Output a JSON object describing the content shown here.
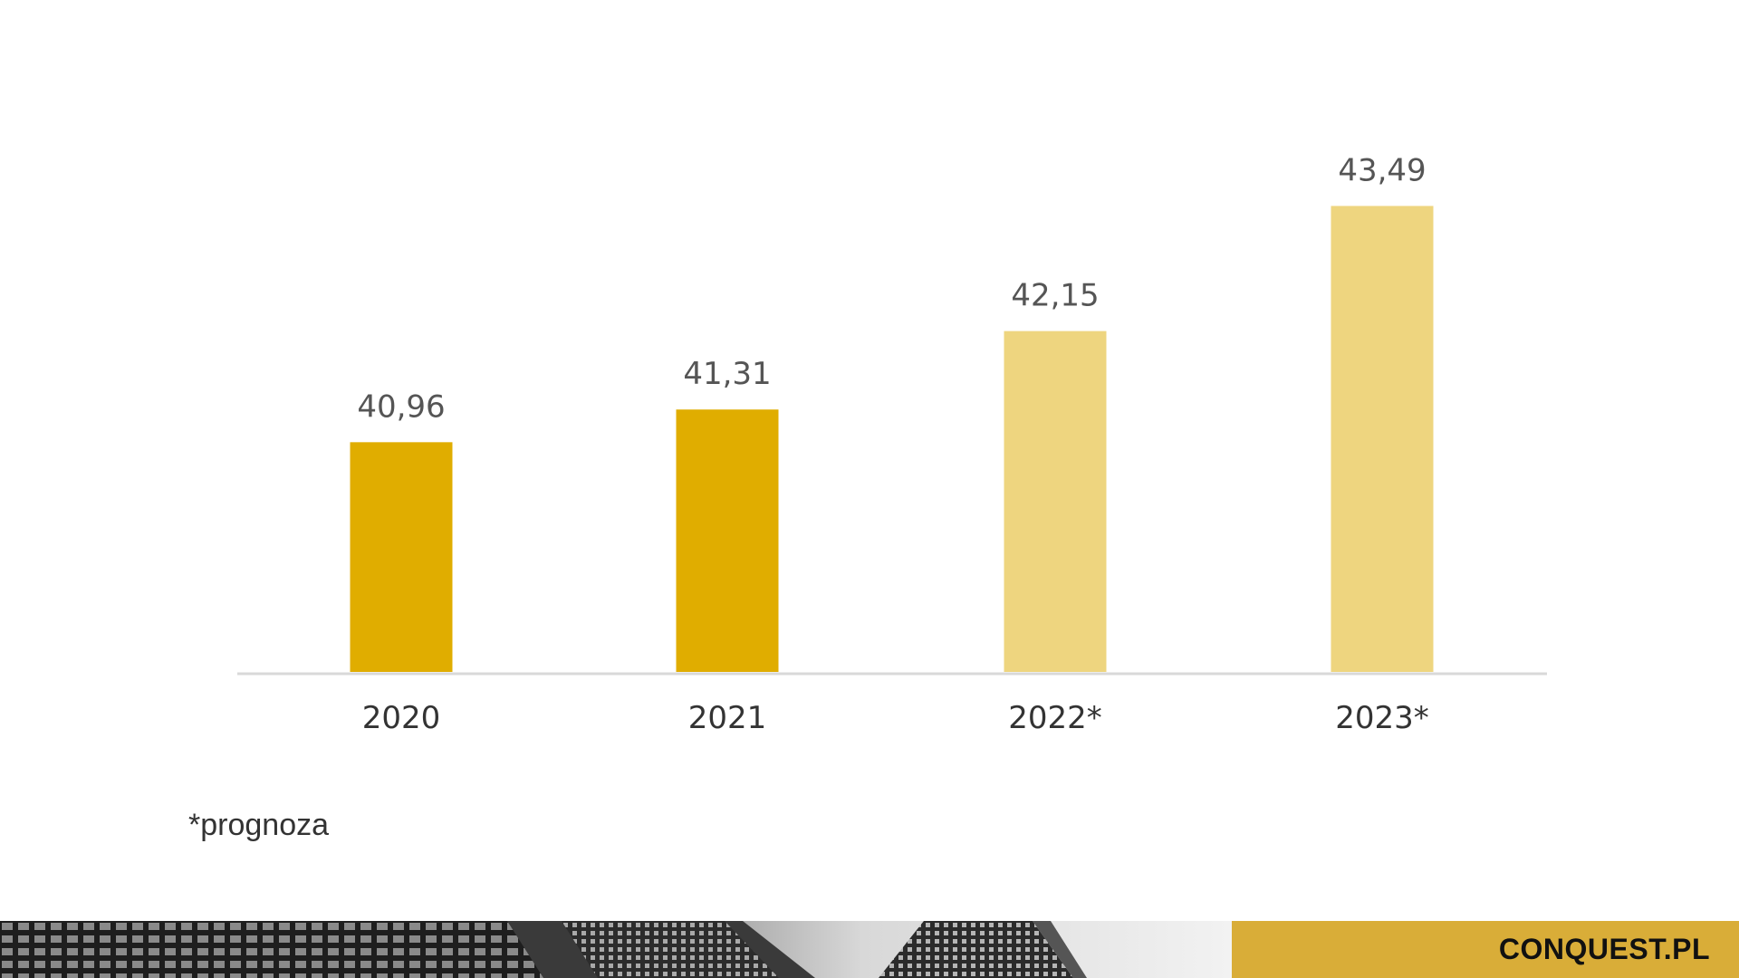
{
  "chart_data": {
    "type": "bar",
    "categories": [
      "2020",
      "2021",
      "2022*",
      "2023*"
    ],
    "values": [
      40.96,
      41.31,
      42.15,
      43.49
    ],
    "value_labels": [
      "40,96",
      "41,31",
      "42,15",
      "43,49"
    ],
    "forecast": [
      false,
      false,
      true,
      true
    ],
    "colors": {
      "actual": "#e0ad00",
      "forecast": "#eed57f",
      "axis": "#d9d9d9"
    },
    "ylim": [
      38.5,
      43.95
    ],
    "grid": false,
    "title": "",
    "xlabel": "",
    "ylabel": ""
  },
  "footnote": "*prognoza",
  "footer": {
    "brand": "CONQUEST.PL",
    "brand_color": "#d9ad38"
  }
}
